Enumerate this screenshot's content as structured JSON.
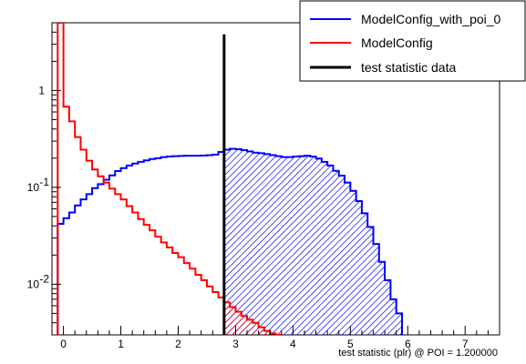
{
  "chart_data": {
    "type": "histogram",
    "title": "",
    "xlabel": "test statistic (plr) @ POI = 1.200000",
    "ylabel": "",
    "xlim": [
      -0.2,
      7.6
    ],
    "ylim": [
      0.003,
      5
    ],
    "yscale": "log",
    "bin_width": 0.1,
    "bin_start": -0.1,
    "x_ticks": [
      "0",
      "1",
      "2",
      "3",
      "4",
      "5",
      "6",
      "7"
    ],
    "x_tick_values": [
      0,
      1,
      2,
      3,
      4,
      5,
      6,
      7
    ],
    "y_ticks": [
      {
        "value": 1,
        "label": "1",
        "exp": ""
      },
      {
        "value": 0.1,
        "label": "10",
        "exp": "-1"
      },
      {
        "value": 0.01,
        "label": "10",
        "exp": "-2"
      }
    ],
    "legend_position": "top-right",
    "test_statistic_data": {
      "name": "test statistic data",
      "x": 2.8,
      "y_top": 3.8,
      "color": "#000000"
    },
    "series": [
      {
        "name": "ModelConfig_with_poi_0",
        "color": "#0000ff",
        "hatch_from_x": 2.8,
        "values": [
          0.042,
          0.048,
          0.055,
          0.065,
          0.075,
          0.085,
          0.098,
          0.108,
          0.12,
          0.133,
          0.147,
          0.158,
          0.168,
          0.176,
          0.183,
          0.19,
          0.196,
          0.2,
          0.205,
          0.208,
          0.21,
          0.211,
          0.212,
          0.212,
          0.212,
          0.213,
          0.215,
          0.218,
          0.232,
          0.245,
          0.25,
          0.248,
          0.242,
          0.235,
          0.228,
          0.225,
          0.22,
          0.215,
          0.21,
          0.205,
          0.205,
          0.208,
          0.21,
          0.212,
          0.208,
          0.198,
          0.183,
          0.168,
          0.148,
          0.132,
          0.112,
          0.092,
          0.072,
          0.054,
          0.039,
          0.026,
          0.017,
          0.011,
          0.007,
          0.005
        ]
      },
      {
        "name": "ModelConfig",
        "color": "#ff0000",
        "hatch_from_x": 2.8,
        "values": [
          5.0,
          0.68,
          0.48,
          0.33,
          0.245,
          0.188,
          0.153,
          0.13,
          0.112,
          0.097,
          0.085,
          0.075,
          0.064,
          0.055,
          0.047,
          0.041,
          0.036,
          0.031,
          0.027,
          0.024,
          0.021,
          0.019,
          0.0165,
          0.0145,
          0.0125,
          0.011,
          0.0095,
          0.0083,
          0.0073,
          0.0065,
          0.0058,
          0.0052,
          0.0047,
          0.0043,
          0.004,
          0.0036,
          0.0033,
          0.0031,
          0.003,
          0.0028,
          0.0026,
          0.0025
        ]
      }
    ]
  },
  "legend": {
    "items": [
      {
        "label": "ModelConfig_with_poi_0",
        "color": "#0000ff"
      },
      {
        "label": "ModelConfig",
        "color": "#ff0000"
      },
      {
        "label": "test statistic data",
        "color": "#000000"
      }
    ]
  }
}
